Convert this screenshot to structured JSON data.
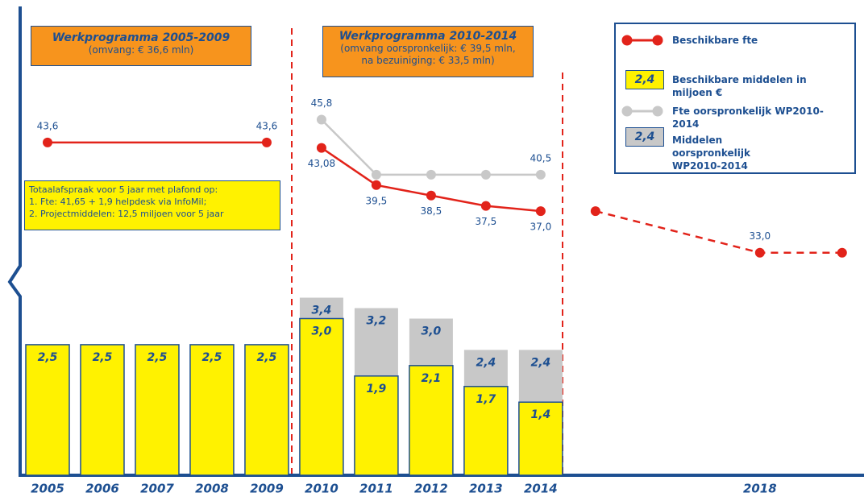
{
  "chart_data": {
    "type": "bar",
    "xlim": [
      2004.5,
      2019.9
    ],
    "xticks": [
      2005,
      2006,
      2007,
      2008,
      2009,
      2010,
      2011,
      2012,
      2013,
      2014,
      2018
    ],
    "ylim": [
      0,
      9.1
    ],
    "y2lim": [
      11.6,
      57.3
    ],
    "bar_series": [
      {
        "name": "Middelen oorspronkelijk WP2010-2014",
        "color": "#c8c8c8",
        "legend_swatch_text": "2,4",
        "x": [
          2010,
          2011,
          2012,
          2013,
          2014
        ],
        "values": [
          3.4,
          3.2,
          3.0,
          2.4,
          2.4
        ],
        "value_labels": [
          "3,4",
          "3,2",
          "3,0",
          "2,4",
          "2,4"
        ]
      },
      {
        "name": "Beschikbare middelen in miljoen €",
        "color": "#fff200",
        "legend_swatch_text": "2,4",
        "x": [
          2005,
          2006,
          2007,
          2008,
          2009,
          2010,
          2011,
          2012,
          2013,
          2014
        ],
        "values": [
          2.5,
          2.5,
          2.5,
          2.5,
          2.5,
          3.0,
          1.9,
          2.1,
          1.7,
          1.4
        ],
        "value_labels": [
          "2,5",
          "2,5",
          "2,5",
          "2,5",
          "2,5",
          "3,0",
          "1,9",
          "2,1",
          "1,7",
          "1,4"
        ]
      }
    ],
    "line_series": [
      {
        "name": "Beschikbare fte",
        "color": "#e2231a",
        "axis": "y2",
        "pieces": [
          {
            "x": [
              2005,
              2009
            ],
            "values": [
              43.6,
              43.6
            ],
            "value_labels": [
              "43,6",
              "43,6"
            ],
            "label_side": "above"
          },
          {
            "x": [
              2010,
              2011,
              2012,
              2013,
              2014
            ],
            "values": [
              43.08,
              39.5,
              38.5,
              37.5,
              37.0
            ],
            "value_labels": [
              "43,08",
              "39,5",
              "38,5",
              "37,5",
              "37,0"
            ],
            "label_side": "below"
          },
          {
            "x": [
              2015,
              2018,
              2019.5
            ],
            "values": [
              37.0,
              33.0,
              33.0
            ],
            "value_labels": [
              null,
              "33,0",
              null
            ],
            "label_side": "above",
            "dashed": true
          }
        ]
      },
      {
        "name": "Fte oorspronkelijk WP2010-2014",
        "color": "#c8c8c8",
        "axis": "y2",
        "pieces": [
          {
            "x": [
              2010,
              2011,
              2012,
              2013,
              2014
            ],
            "values": [
              45.8,
              40.5,
              40.5,
              40.5,
              40.5
            ],
            "value_labels": [
              "45,8",
              null,
              null,
              null,
              "40,5"
            ],
            "label_side": "above"
          }
        ]
      }
    ],
    "annotations": {
      "wp1": {
        "title": "Werkprogramma 2005-2009",
        "lines": [
          "(omvang: € 36,6 mln)"
        ]
      },
      "wp2": {
        "title": "Werkprogramma 2010-2014",
        "lines": [
          "(omvang oorspronkelijk: € 39,5 mln,",
          "na bezuiniging: € 33,5 mln)"
        ]
      },
      "note": {
        "lines": [
          "Totaalafspraak voor 5 jaar met plafond op:",
          "1. Fte: 41,65 + 1,9 helpdesk via InfoMil;",
          "2. Projectmiddelen: 12,5 miljoen voor 5 jaar"
        ]
      }
    }
  }
}
